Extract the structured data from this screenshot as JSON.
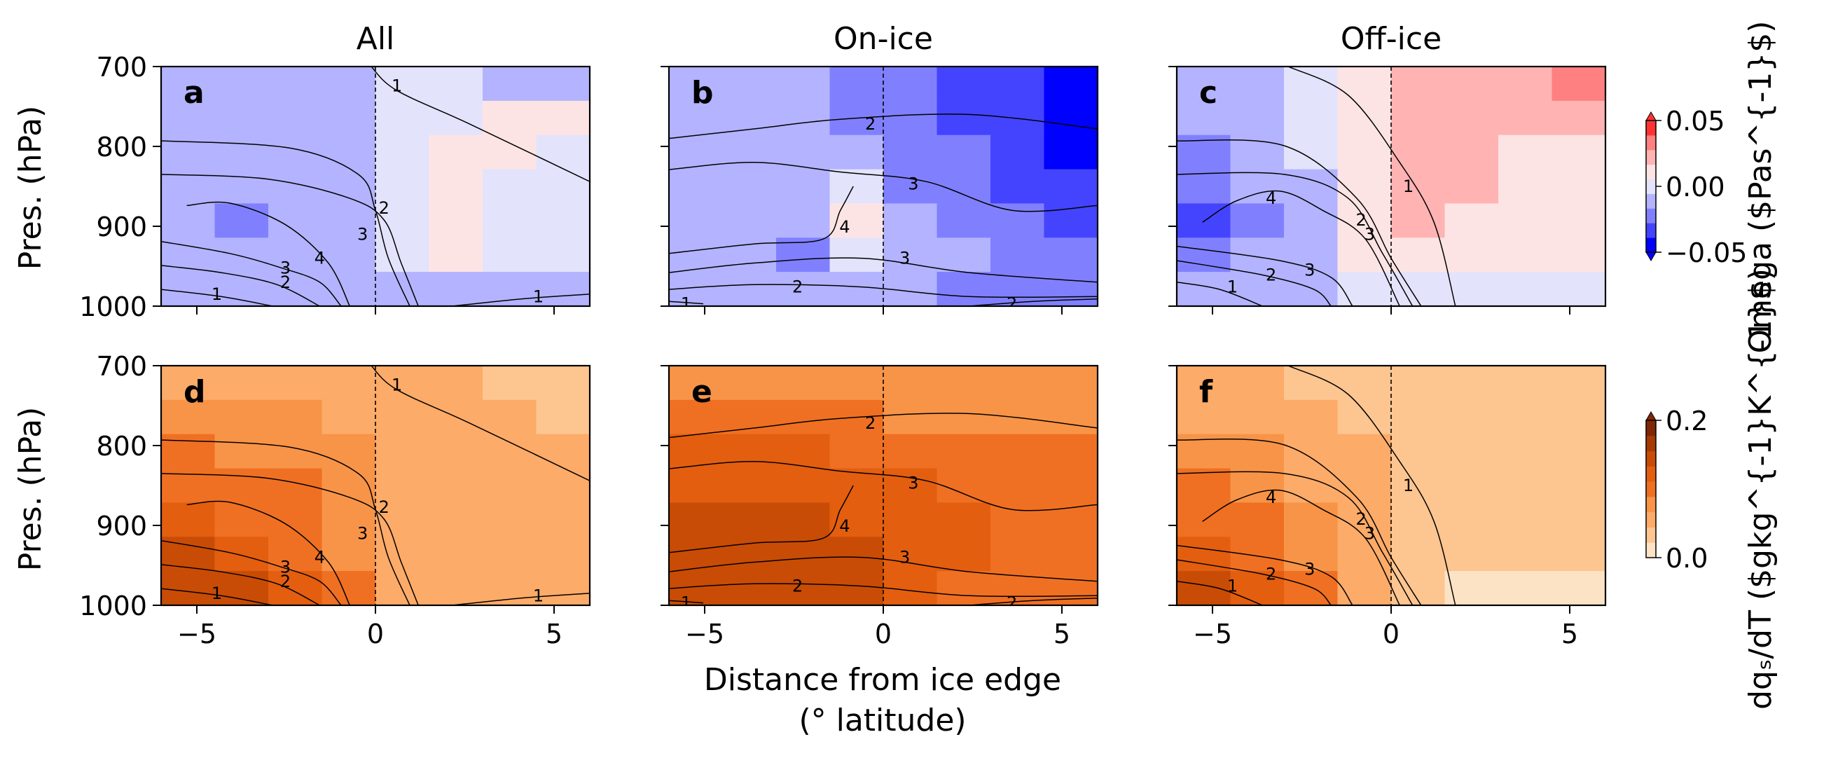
{
  "figure": {
    "xlabel_line1": "Distance from ice edge",
    "xlabel_line2": "(° latitude)",
    "ylabel": "Pres. (hPa)"
  },
  "chart_data": [
    {
      "panel": "a",
      "type": "heatmap",
      "variable": "omega",
      "title": "All",
      "xlim": [
        -6,
        6
      ],
      "ylim": [
        1000,
        700
      ],
      "xticks": [
        -5,
        0,
        5
      ],
      "yticks": [
        700,
        800,
        900,
        1000
      ],
      "grid": false,
      "ice_edge_line": 0,
      "contour_labels": [
        "1",
        "2",
        "3",
        "4",
        "3",
        "2",
        "1",
        "1"
      ],
      "fill": [
        [
          -1,
          -1,
          -1,
          -1,
          0,
          0,
          -1,
          -1
        ],
        [
          -1,
          -1,
          -1,
          -1,
          0,
          0,
          1,
          1
        ],
        [
          -1,
          -1,
          -1,
          -1,
          0,
          1,
          1,
          0
        ],
        [
          -1,
          -1,
          -1,
          -1,
          0,
          1,
          0,
          0
        ],
        [
          -1,
          -2,
          -1,
          -1,
          0,
          1,
          0,
          0
        ],
        [
          -1,
          -1,
          -1,
          -1,
          0,
          1,
          0,
          0
        ],
        [
          -1,
          -1,
          -1,
          -1,
          -1,
          -1,
          -1,
          -1
        ]
      ]
    },
    {
      "panel": "b",
      "type": "heatmap",
      "variable": "omega",
      "title": "On-ice",
      "xlim": [
        -6,
        6
      ],
      "ylim": [
        1000,
        700
      ],
      "xticks": [
        -5,
        0,
        5
      ],
      "yticks": [
        700,
        800,
        900,
        1000
      ],
      "grid": false,
      "ice_edge_line": 0,
      "contour_labels": [
        "2",
        "3",
        "4",
        "3",
        "2",
        "2",
        "1"
      ],
      "fill": [
        [
          -1,
          -1,
          -1,
          -2,
          -2,
          -3,
          -3,
          -4
        ],
        [
          -1,
          -1,
          -1,
          -2,
          -2,
          -3,
          -3,
          -4
        ],
        [
          -1,
          -1,
          -1,
          -1,
          -2,
          -2,
          -3,
          -4
        ],
        [
          -1,
          -1,
          -1,
          0,
          -2,
          -2,
          -3,
          -3
        ],
        [
          -1,
          -1,
          -1,
          1,
          -1,
          -2,
          -2,
          -3
        ],
        [
          -1,
          -1,
          -2,
          0,
          -1,
          -1,
          -2,
          -2
        ],
        [
          -1,
          -1,
          -1,
          -1,
          -1,
          -2,
          -2,
          -2
        ]
      ]
    },
    {
      "panel": "c",
      "type": "heatmap",
      "variable": "omega",
      "title": "Off-ice",
      "xlim": [
        -6,
        6
      ],
      "ylim": [
        1000,
        700
      ],
      "xticks": [
        -5,
        0,
        5
      ],
      "yticks": [
        700,
        800,
        900,
        1000
      ],
      "grid": false,
      "ice_edge_line": 0,
      "contour_labels": [
        "1",
        "4",
        "2",
        "3",
        "1",
        "2",
        "3"
      ],
      "fill": [
        [
          -1,
          -1,
          0,
          1,
          2,
          2,
          2,
          3
        ],
        [
          -1,
          -1,
          0,
          1,
          2,
          2,
          2,
          2
        ],
        [
          -2,
          -1,
          0,
          1,
          2,
          2,
          1,
          1
        ],
        [
          -2,
          -1,
          -1,
          1,
          2,
          2,
          1,
          1
        ],
        [
          -3,
          -2,
          -1,
          1,
          2,
          1,
          1,
          1
        ],
        [
          -2,
          -1,
          -1,
          1,
          1,
          1,
          1,
          1
        ],
        [
          -1,
          -1,
          -1,
          0,
          0,
          0,
          0,
          0
        ]
      ]
    },
    {
      "panel": "d",
      "type": "heatmap",
      "variable": "dqs/dT",
      "title": "",
      "xlim": [
        -6,
        6
      ],
      "ylim": [
        1000,
        700
      ],
      "xticks": [
        -5,
        0,
        5
      ],
      "yticks": [
        700,
        800,
        900,
        1000
      ],
      "grid": false,
      "ice_edge_line": 0,
      "contour_labels": [
        "1",
        "2",
        "3",
        "4",
        "3",
        "2",
        "1",
        "1"
      ],
      "fill": [
        [
          2,
          2,
          2,
          2,
          2,
          2,
          1,
          1
        ],
        [
          3,
          3,
          3,
          2,
          2,
          2,
          2,
          1
        ],
        [
          4,
          3,
          3,
          3,
          2,
          2,
          2,
          2
        ],
        [
          4,
          4,
          4,
          3,
          2,
          2,
          2,
          2
        ],
        [
          5,
          4,
          4,
          3,
          2,
          2,
          2,
          2
        ],
        [
          6,
          5,
          4,
          3,
          2,
          2,
          2,
          2
        ],
        [
          6,
          6,
          5,
          4,
          2,
          2,
          2,
          2
        ]
      ]
    },
    {
      "panel": "e",
      "type": "heatmap",
      "variable": "dqs/dT",
      "title": "",
      "xlim": [
        -6,
        6
      ],
      "ylim": [
        1000,
        700
      ],
      "xticks": [
        -5,
        0,
        5
      ],
      "yticks": [
        700,
        800,
        900,
        1000
      ],
      "grid": false,
      "ice_edge_line": 0,
      "contour_labels": [
        "2",
        "3",
        "4",
        "3",
        "2",
        "2",
        "1"
      ],
      "fill": [
        [
          3,
          3,
          3,
          3,
          3,
          3,
          3,
          3
        ],
        [
          4,
          4,
          4,
          4,
          3,
          3,
          3,
          3
        ],
        [
          5,
          5,
          5,
          4,
          4,
          4,
          4,
          4
        ],
        [
          5,
          5,
          5,
          5,
          5,
          4,
          4,
          4
        ],
        [
          6,
          6,
          6,
          5,
          5,
          5,
          4,
          4
        ],
        [
          6,
          6,
          6,
          6,
          5,
          5,
          4,
          4
        ],
        [
          6,
          6,
          6,
          6,
          5,
          4,
          4,
          4
        ]
      ]
    },
    {
      "panel": "f",
      "type": "heatmap",
      "variable": "dqs/dT",
      "title": "",
      "xlim": [
        -6,
        6
      ],
      "ylim": [
        1000,
        700
      ],
      "xticks": [
        -5,
        0,
        5
      ],
      "yticks": [
        700,
        800,
        900,
        1000
      ],
      "grid": false,
      "ice_edge_line": 0,
      "contour_labels": [
        "1",
        "4",
        "2",
        "3",
        "1",
        "2",
        "3"
      ],
      "fill": [
        [
          2,
          2,
          1,
          1,
          1,
          1,
          1,
          1
        ],
        [
          2,
          2,
          2,
          1,
          1,
          1,
          1,
          1
        ],
        [
          3,
          3,
          2,
          2,
          1,
          1,
          1,
          1
        ],
        [
          4,
          3,
          2,
          2,
          1,
          1,
          1,
          1
        ],
        [
          4,
          4,
          3,
          2,
          1,
          1,
          1,
          1
        ],
        [
          5,
          4,
          3,
          2,
          1,
          1,
          1,
          1
        ],
        [
          6,
          5,
          4,
          2,
          1,
          0,
          0,
          0
        ]
      ]
    }
  ],
  "colorbars": [
    {
      "label": "Omega ($Pas^{-1}$)",
      "ticks": [
        "0.05",
        "0.00",
        "−0.05"
      ],
      "colormap": "bwr",
      "colors": [
        "#0000ff",
        "#4444ff",
        "#8080ff",
        "#b3b3ff",
        "#e3e3fb",
        "#fde4e4",
        "#ffb3b3",
        "#ff8080",
        "#ff3333"
      ]
    },
    {
      "label": "dqₛ/dT ($gkg^{-1}K^{-1}$)",
      "ticks": [
        "0.2",
        "0.0"
      ],
      "colormap": "Oranges",
      "colors": [
        "#fde3c5",
        "#fdc590",
        "#fdab68",
        "#f89447",
        "#ef7022",
        "#e35e0f",
        "#c84c05",
        "#a73a03",
        "#7f2704"
      ]
    }
  ]
}
